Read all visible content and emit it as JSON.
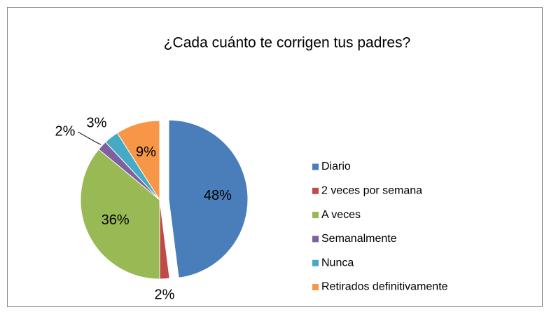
{
  "chart_data": {
    "type": "pie",
    "title": "¿Cada cuánto te corrigen tus padres?",
    "categories": [
      "Diario",
      "2 veces por semana",
      "A veces",
      "Semanalmente",
      "Nunca",
      "Retirados definitivamente"
    ],
    "values": [
      48,
      2,
      36,
      2,
      3,
      9
    ],
    "value_labels": [
      "48%",
      "2%",
      "36%",
      "2%",
      "3%",
      "9%"
    ],
    "colors": [
      "#4a7ebb",
      "#be4b48",
      "#98b954",
      "#7d60a0",
      "#46aac5",
      "#f79646"
    ],
    "legend": "right"
  }
}
